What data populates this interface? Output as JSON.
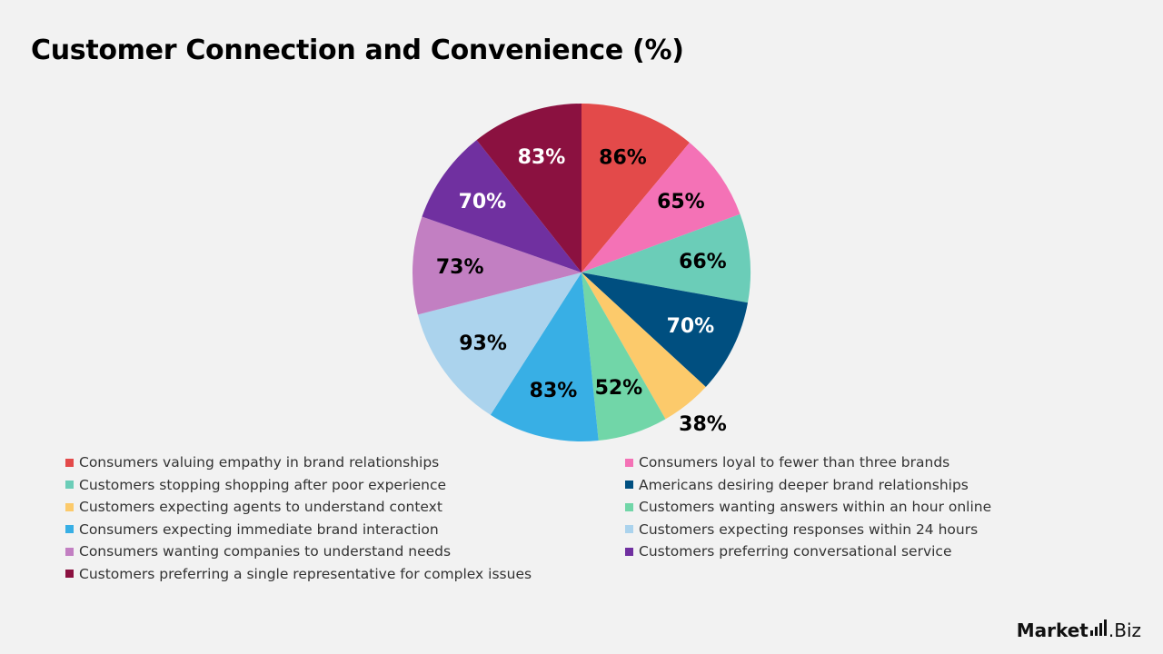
{
  "chart_data": {
    "type": "pie",
    "title": "Customer Connection and Convenience (%)",
    "categories": [
      "Consumers valuing empathy in brand relationships",
      "Consumers loyal to fewer than three brands",
      "Customers stopping shopping after poor experience",
      "Americans desiring deeper brand relationships",
      "Customers expecting agents to understand context",
      "Customers wanting answers within an hour online",
      "Consumers expecting immediate brand interaction",
      "Customers expecting responses within 24 hours",
      "Consumers wanting companies to understand needs",
      "Customers preferring conversational service",
      "Customers preferring a single representative for complex issues"
    ],
    "values": [
      86,
      65,
      66,
      70,
      38,
      52,
      83,
      93,
      73,
      70,
      83
    ],
    "value_labels": [
      "86%",
      "65%",
      "66%",
      "70%",
      "38%",
      "52%",
      "83%",
      "93%",
      "73%",
      "70%",
      "83%"
    ],
    "colors": [
      "#e34a4a",
      "#f472b6",
      "#6bcdb8",
      "#004f80",
      "#fcca6b",
      "#71d6a8",
      "#38afe5",
      "#abd3ed",
      "#c27fc2",
      "#7030a0",
      "#8b1140"
    ],
    "label_colors": [
      "#000000",
      "#000000",
      "#000000",
      "#ffffff",
      "#000000",
      "#000000",
      "#000000",
      "#000000",
      "#000000",
      "#ffffff",
      "#ffffff"
    ],
    "legend_position": "bottom",
    "start_angle": "12 o'clock",
    "direction": "clockwise"
  },
  "brand": {
    "name_bold": "Market",
    "name_suffix": ".Biz"
  }
}
